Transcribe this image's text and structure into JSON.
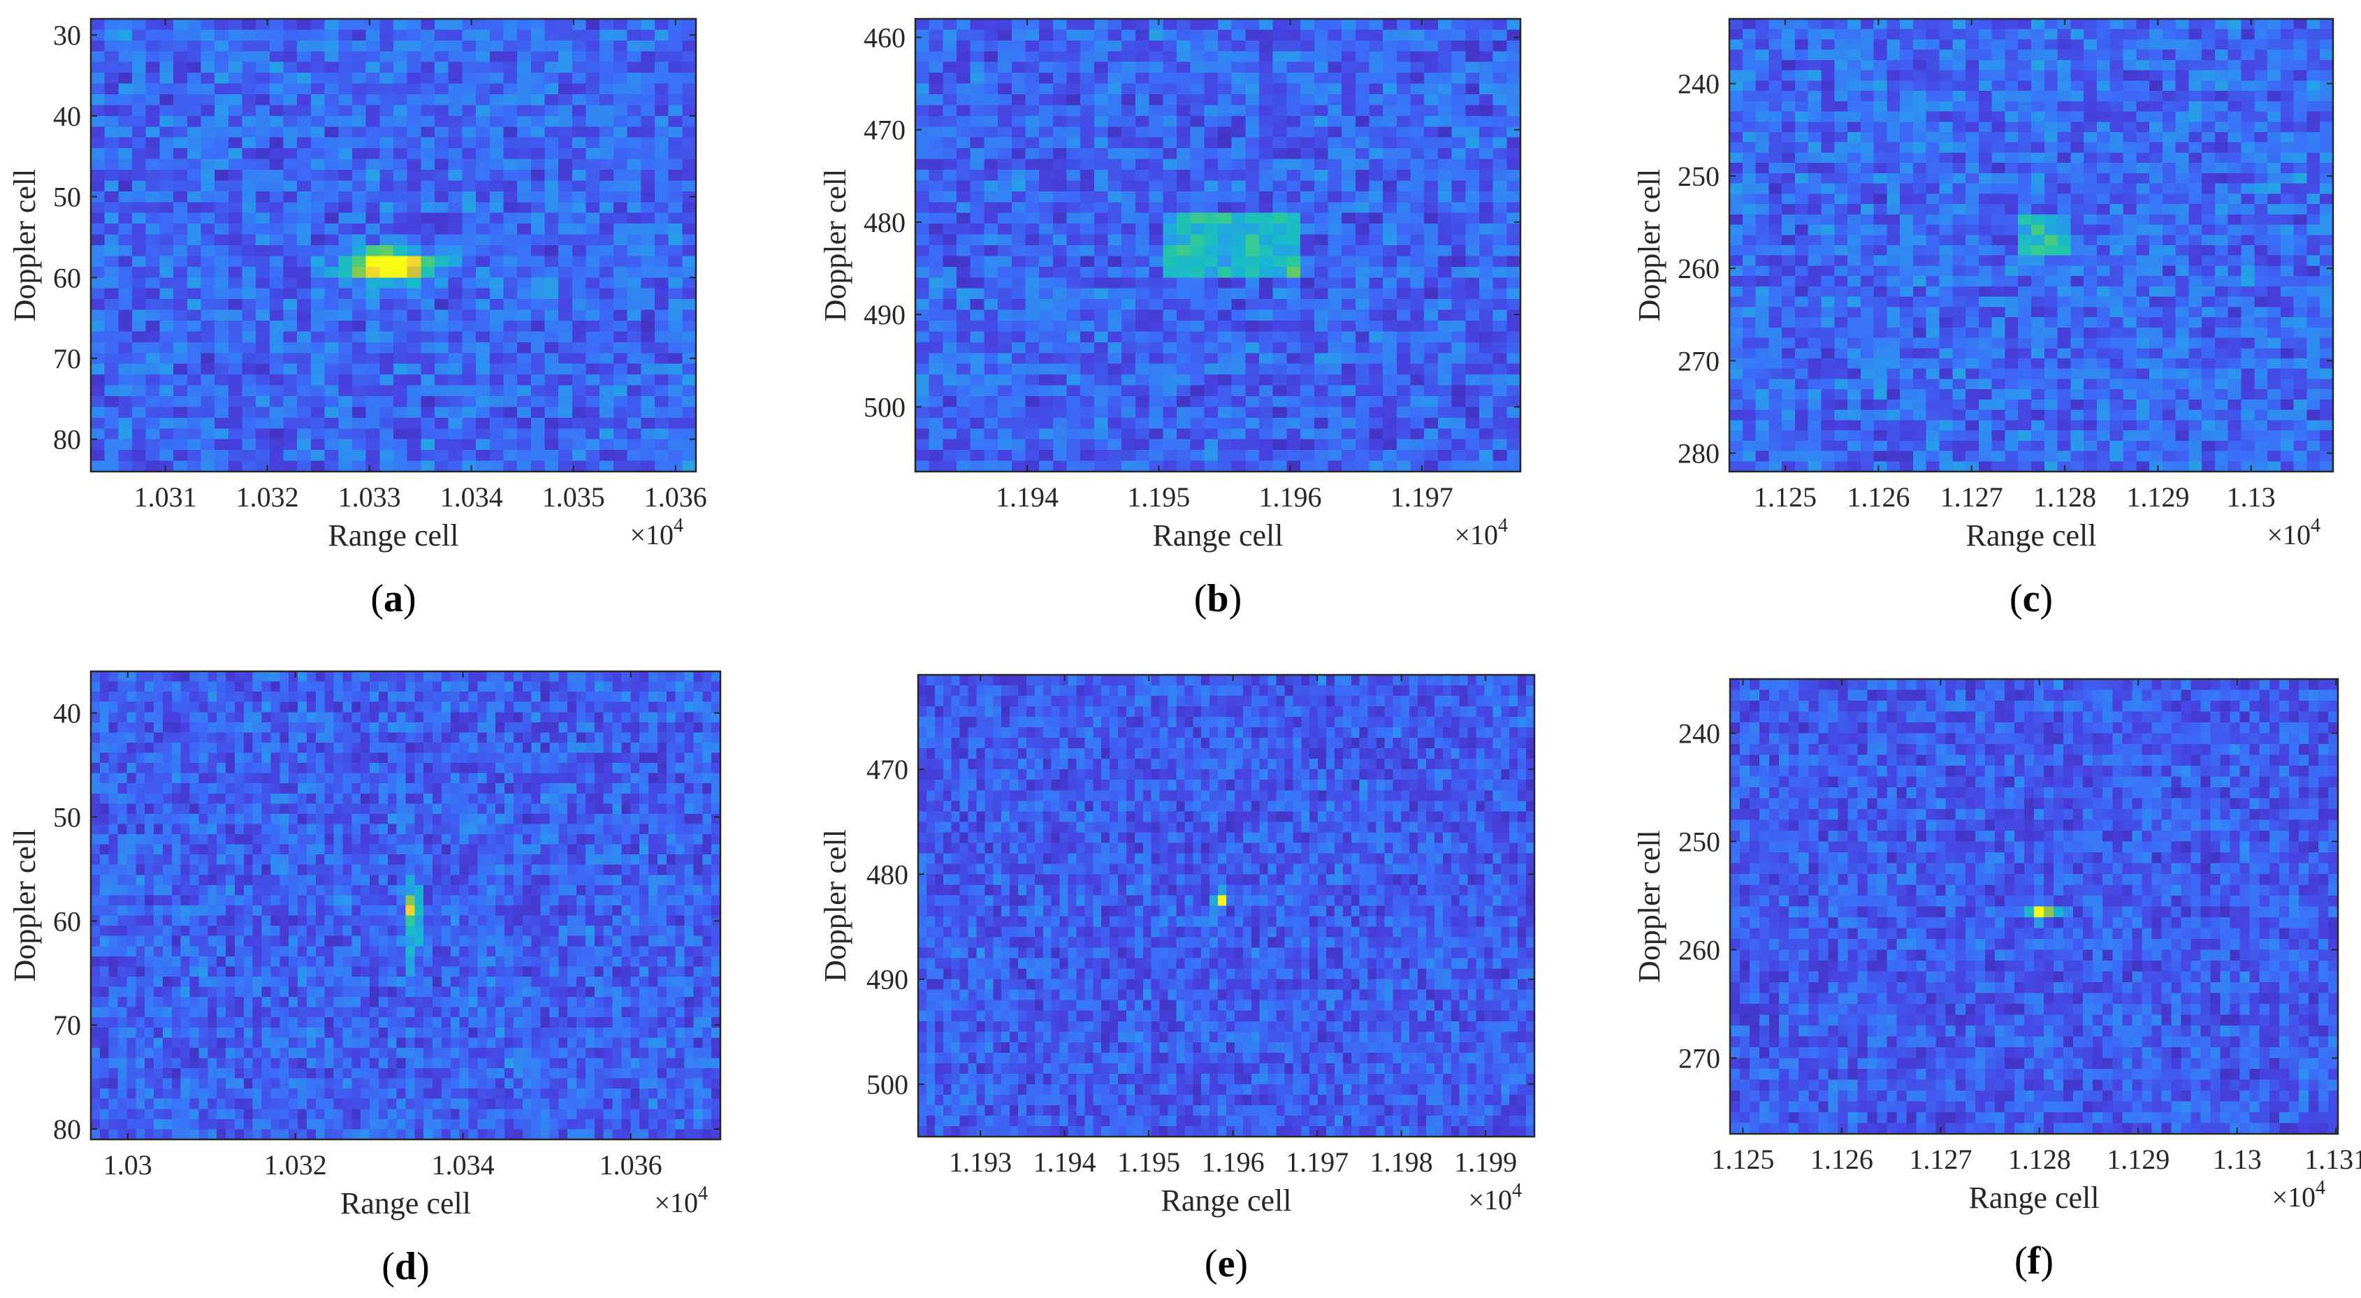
{
  "figure": {
    "colormap": [
      "#3e26a8",
      "#4742e0",
      "#3b6ff9",
      "#2c96ef",
      "#17b8cf",
      "#26c8a2",
      "#6ccd5b",
      "#d2c13a",
      "#fadb2a",
      "#f9fb15"
    ],
    "axis_color": "#262626"
  },
  "chart_data": [
    {
      "panel": "a",
      "type": "heatmap",
      "xlabel": "Range cell",
      "ylabel": "Doppler cell",
      "x_exponent": "4",
      "xlim": [
        1.03027,
        1.0362
      ],
      "x_scale": 10000,
      "ylim": [
        28,
        84
      ],
      "y_reversed": true,
      "xticks": [
        1.031,
        1.032,
        1.033,
        1.034,
        1.035,
        1.036
      ],
      "xtick_labels": [
        "1.031",
        "1.032",
        "1.033",
        "1.034",
        "1.035",
        "1.036"
      ],
      "yticks": [
        30,
        40,
        50,
        60,
        70,
        80
      ],
      "ytick_labels": [
        "30",
        "40",
        "50",
        "60",
        "70",
        "80"
      ],
      "grid": false,
      "cols": 44,
      "rows": 42,
      "noise_level": 0.33,
      "seed": 11,
      "targets": [
        {
          "x": 10332,
          "y": 58.5,
          "sx": 3.5,
          "sy": 1.6,
          "amp": 0.42
        },
        {
          "x": 10332,
          "y": 58.5,
          "sx": 2.4,
          "sy": 1.0,
          "amp": 0.9
        }
      ]
    },
    {
      "panel": "b",
      "type": "heatmap",
      "xlabel": "Range cell",
      "ylabel": "Doppler cell",
      "x_exponent": "4",
      "xlim": [
        1.19315,
        1.19775
      ],
      "x_scale": 10000,
      "ylim": [
        458,
        507
      ],
      "y_reversed": true,
      "xticks": [
        1.194,
        1.195,
        1.196,
        1.197
      ],
      "xtick_labels": [
        "1.194",
        "1.195",
        "1.196",
        "1.197"
      ],
      "yticks": [
        460,
        470,
        480,
        490,
        500
      ],
      "ytick_labels": [
        "460",
        "470",
        "480",
        "490",
        "500"
      ],
      "grid": false,
      "cols": 44,
      "rows": 42,
      "noise_level": 0.32,
      "seed": 23,
      "targets": [
        {
          "x": 11955.5,
          "y": 482.5,
          "sx": 5.5,
          "sy": 3.5,
          "amp": 0.33,
          "flat": true
        }
      ]
    },
    {
      "panel": "c",
      "type": "heatmap",
      "xlabel": "Range cell",
      "ylabel": "Doppler cell",
      "x_exponent": "4",
      "xlim": [
        1.1244,
        1.13088
      ],
      "x_scale": 10000,
      "ylim": [
        233,
        282
      ],
      "y_reversed": true,
      "xticks": [
        1.125,
        1.126,
        1.127,
        1.128,
        1.129,
        1.13
      ],
      "xtick_labels": [
        "1.125",
        "1.126",
        "1.127",
        "1.128",
        "1.129",
        "1.13"
      ],
      "yticks": [
        240,
        250,
        260,
        270,
        280
      ],
      "ytick_labels": [
        "240",
        "250",
        "260",
        "270",
        "280"
      ],
      "grid": false,
      "cols": 46,
      "rows": 44,
      "noise_level": 0.34,
      "seed": 37,
      "targets": [
        {
          "x": 11278,
          "y": 256.5,
          "sx": 3.2,
          "sy": 2.5,
          "amp": 0.35,
          "flat": true
        }
      ]
    },
    {
      "panel": "d",
      "type": "heatmap",
      "xlabel": "Range cell",
      "ylabel": "Doppler cell",
      "x_exponent": "4",
      "xlim": [
        1.02956,
        1.03707
      ],
      "x_scale": 10000,
      "ylim": [
        36,
        81
      ],
      "y_reversed": true,
      "xticks": [
        1.03,
        1.032,
        1.034,
        1.036
      ],
      "xtick_labels": [
        "1.03",
        "1.032",
        "1.034",
        "1.036"
      ],
      "yticks": [
        40,
        50,
        60,
        70,
        80
      ],
      "ytick_labels": [
        "40",
        "50",
        "60",
        "70",
        "80"
      ],
      "grid": false,
      "cols": 70,
      "rows": 46,
      "noise_level": 0.3,
      "seed": 41,
      "targets": [
        {
          "x": 10334,
          "y": 60.5,
          "sx": 0.6,
          "sy": 3.0,
          "amp": 0.38
        },
        {
          "x": 10334,
          "y": 58.5,
          "sx": 0.6,
          "sy": 0.9,
          "amp": 0.55
        }
      ]
    },
    {
      "panel": "e",
      "type": "heatmap",
      "xlabel": "Range cell",
      "ylabel": "Doppler cell",
      "x_exponent": "4",
      "xlim": [
        1.19226,
        1.19958
      ],
      "x_scale": 10000,
      "ylim": [
        461,
        505
      ],
      "y_reversed": true,
      "xticks": [
        1.193,
        1.194,
        1.195,
        1.196,
        1.197,
        1.198,
        1.199
      ],
      "xtick_labels": [
        "1.193",
        "1.194",
        "1.195",
        "1.196",
        "1.197",
        "1.198",
        "1.199"
      ],
      "yticks": [
        470,
        480,
        490,
        500
      ],
      "ytick_labels": [
        "470",
        "480",
        "490",
        "500"
      ],
      "grid": false,
      "cols": 74,
      "rows": 44,
      "noise_level": 0.28,
      "seed": 53,
      "targets": [
        {
          "x": 11958.5,
          "y": 482.5,
          "sx": 0.5,
          "sy": 0.5,
          "amp": 0.98
        }
      ]
    },
    {
      "panel": "f",
      "type": "heatmap",
      "xlabel": "Range cell",
      "ylabel": "Doppler cell",
      "x_exponent": "4",
      "xlim": [
        1.12487,
        1.13102
      ],
      "x_scale": 10000,
      "ylim": [
        235,
        277
      ],
      "y_reversed": true,
      "xticks": [
        1.125,
        1.126,
        1.127,
        1.128,
        1.129,
        1.13,
        1.131
      ],
      "xtick_labels": [
        "1.125",
        "1.126",
        "1.127",
        "1.128",
        "1.129",
        "1.13",
        "1.131"
      ],
      "yticks": [
        240,
        250,
        260,
        270
      ],
      "ytick_labels": [
        "240",
        "250",
        "260",
        "270"
      ],
      "grid": false,
      "cols": 62,
      "rows": 42,
      "noise_level": 0.28,
      "seed": 67,
      "targets": [
        {
          "x": 11280,
          "y": 256.5,
          "sx": 0.6,
          "sy": 0.5,
          "amp": 0.98
        },
        {
          "x": 11281.5,
          "y": 256.5,
          "sx": 0.9,
          "sy": 0.4,
          "amp": 0.3
        }
      ]
    }
  ]
}
